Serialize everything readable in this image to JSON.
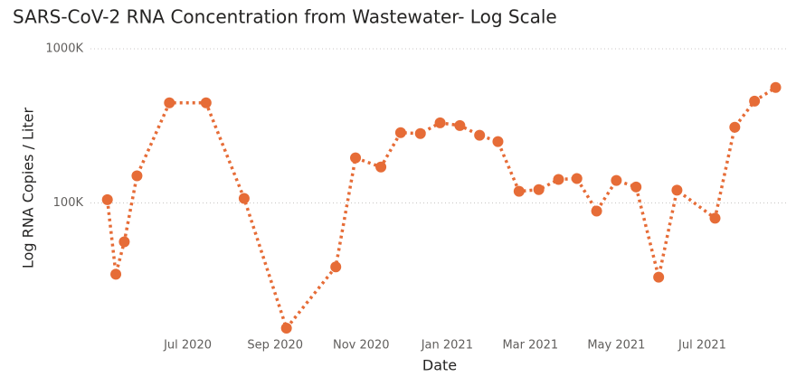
{
  "chart_data": {
    "type": "line",
    "title": "SARS-CoV-2 RNA Concentration from Wastewater- Log Scale",
    "xlabel": "Date",
    "ylabel": "Log RNA Copies / Liter",
    "color": "#E66C37",
    "yscale": "log",
    "grid": true,
    "x": [
      "2020-05-05",
      "2020-05-11",
      "2020-05-17",
      "2020-05-26",
      "2020-06-18",
      "2020-07-14",
      "2020-08-10",
      "2020-09-09",
      "2020-10-14",
      "2020-10-28",
      "2020-11-15",
      "2020-11-29",
      "2020-12-13",
      "2020-12-27",
      "2021-01-10",
      "2021-01-24",
      "2021-02-06",
      "2021-02-21",
      "2021-03-07",
      "2021-03-21",
      "2021-04-03",
      "2021-04-17",
      "2021-05-01",
      "2021-05-15",
      "2021-05-31",
      "2021-06-13",
      "2021-07-10",
      "2021-07-24",
      "2021-08-07",
      "2021-08-22"
    ],
    "values": [
      105000,
      34500,
      56000,
      150000,
      446000,
      446000,
      107000,
      15400,
      38500,
      196000,
      171000,
      286000,
      282000,
      331000,
      318000,
      275000,
      250000,
      119000,
      122000,
      142000,
      144000,
      88600,
      140000,
      127000,
      33000,
      121000,
      79600,
      310000,
      458000,
      561000
    ],
    "xlim": [
      "2020-04-23",
      "2021-08-30"
    ],
    "xticks": [
      {
        "value": "2020-07-01",
        "label": "Jul 2020"
      },
      {
        "value": "2020-09-01",
        "label": "Sep 2020"
      },
      {
        "value": "2020-11-01",
        "label": "Nov 2020"
      },
      {
        "value": "2021-01-01",
        "label": "Jan 2021"
      },
      {
        "value": "2021-03-01",
        "label": "Mar 2021"
      },
      {
        "value": "2021-05-01",
        "label": "May 2021"
      },
      {
        "value": "2021-07-01",
        "label": "Jul 2021"
      }
    ],
    "ylim": [
      15000,
      1000000
    ],
    "yticks": [
      {
        "value": 100000,
        "label": "100K"
      },
      {
        "value": 1000000,
        "label": "1000K"
      }
    ]
  }
}
